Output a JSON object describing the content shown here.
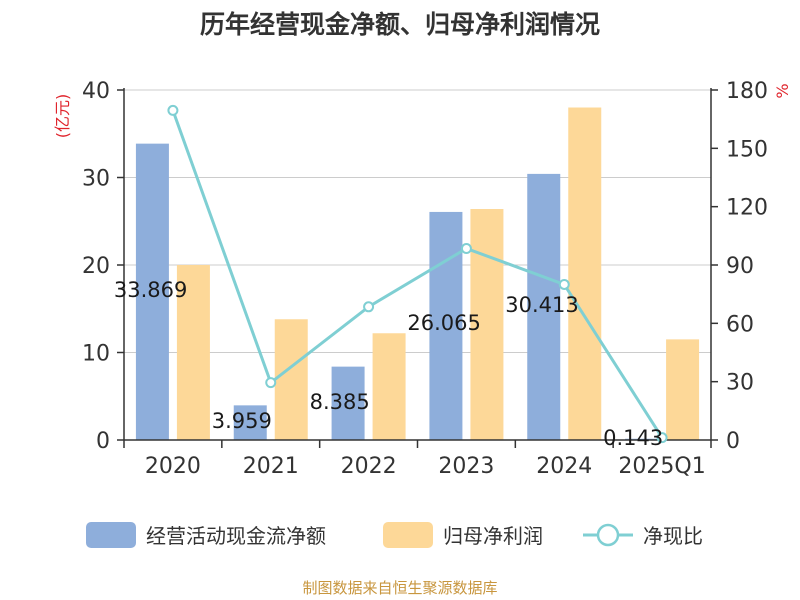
{
  "chart_data": {
    "type": "bar",
    "title": "历年经营现金净额、归母净利润情况",
    "categories": [
      "2020",
      "2021",
      "2022",
      "2023",
      "2024",
      "2025Q1"
    ],
    "series": [
      {
        "name": "经营活动现金流净额",
        "axis": "left",
        "kind": "bar",
        "color": "#8eaedb",
        "values": [
          33.869,
          3.959,
          8.385,
          26.065,
          30.413,
          0.143
        ],
        "labels": [
          "33.869",
          "3.959",
          "8.385",
          "26.065",
          "30.413",
          "0.143"
        ]
      },
      {
        "name": "归母净利润",
        "axis": "left",
        "kind": "bar",
        "color": "#fdd898",
        "values": [
          20.0,
          13.8,
          12.2,
          26.4,
          38.0,
          11.5
        ]
      },
      {
        "name": "净现比",
        "axis": "right",
        "kind": "line",
        "color": "#7fcfd3",
        "values": [
          169.5,
          29.5,
          68.5,
          98.5,
          80.0,
          1.2
        ]
      }
    ],
    "y_left": {
      "label": "(亿元)",
      "ylim": [
        0,
        40
      ],
      "ticks": [
        "0",
        "10",
        "20",
        "30",
        "40"
      ]
    },
    "y_right": {
      "label": "%",
      "ylim": [
        0,
        180
      ],
      "ticks": [
        "0",
        "30",
        "60",
        "90",
        "120",
        "150",
        "180"
      ]
    },
    "grid": true,
    "legend_position": "bottom",
    "source": "制图数据来自恒生聚源数据库",
    "colors": {
      "title": "#333333",
      "axis_label": "#e0242c",
      "source": "#c8963e",
      "grid": "#cccccc",
      "axis": "#333333"
    }
  }
}
